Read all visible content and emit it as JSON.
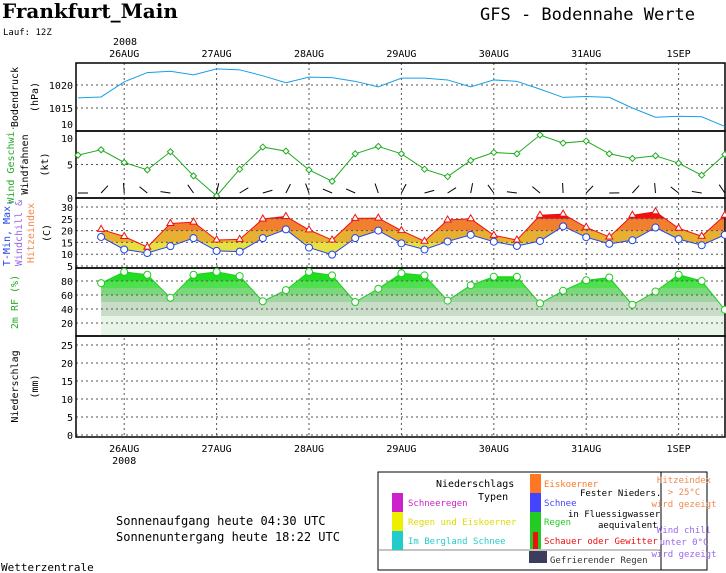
{
  "header": {
    "location": "Frankfurt_Main",
    "model_title": "GFS - Bodennahe Werte",
    "run": "Lauf: 12Z",
    "year": "2008"
  },
  "footer": {
    "sunrise": "Sonnenaufgang heute 04:30 UTC",
    "sunset": "Sonnenuntergang heute 18:22 UTC",
    "credit": "Wetterzentrale"
  },
  "chart_data": {
    "type": "line",
    "x_step_hours": 6,
    "x_start": "25AUG 18Z",
    "day_labels": [
      "26AUG",
      "27AUG",
      "28AUG",
      "29AUG",
      "30AUG",
      "31AUG",
      "1SEP"
    ],
    "bottom_year": "2008",
    "panels": [
      {
        "id": "pressure",
        "ylabel": "Bodendruck",
        "unit": "(hPa)",
        "ticks": [
          "1020",
          "1015",
          "10"
        ],
        "ylim": [
          1010,
          1025
        ],
        "series": [
          {
            "name": "Bodendruck",
            "color": "#1a9ee6",
            "values": [
              1017.2,
              1017.4,
              1020.7,
              1022.7,
              1023,
              1022.2,
              1023.5,
              1023.3,
              1022,
              1020.5,
              1021.7,
              1021.6,
              1020.8,
              1019.6,
              1021.5,
              1021.5,
              1021.1,
              1019.6,
              1021.1,
              1020.8,
              1019.1,
              1017.3,
              1017.5,
              1017.3,
              1015,
              1013,
              1013.2,
              1013.1,
              1011
            ]
          }
        ]
      },
      {
        "id": "wind",
        "ylabel": "Wind Geschwi.",
        "ylabel2": "Windfahnen",
        "unit": "(kt)",
        "ticks": [
          "10",
          "5",
          "0"
        ],
        "ylim": [
          0,
          10
        ],
        "series": [
          {
            "name": "Wind Geschwi.",
            "color": "#22aa22",
            "values": [
              6.4,
              7.2,
              5.3,
              4.2,
              6.9,
              3.3,
              0.3,
              4.3,
              7.6,
              7.0,
              4.2,
              2.5,
              6.6,
              7.7,
              6.6,
              4.3,
              3.2,
              5.6,
              6.8,
              6.6,
              9.4,
              8.2,
              8.5,
              6.6,
              5.9,
              6.3,
              5.2,
              3.4,
              6.5
            ]
          }
        ]
      },
      {
        "id": "temperature",
        "ylabel": "T-Min, Max,",
        "ylabel_colored": "Windchill &",
        "ylabel3": "Hitzeindex",
        "unit": "(C)",
        "ticks": [
          "30",
          "25",
          "20",
          "15",
          "10",
          "5"
        ],
        "ylim": [
          5,
          32
        ],
        "series": [
          {
            "name": "T-Min",
            "color": "#2244ee",
            "values": [
              null,
              17.3,
              12,
              10.5,
              13.4,
              16.8,
              11.4,
              11.1,
              16.8,
              20.5,
              12.8,
              9.8,
              16.8,
              20,
              14.6,
              12,
              15.4,
              18.2,
              15.3,
              13.5,
              15.6,
              21.8,
              17.2,
              14.4,
              15.9,
              21.3,
              16.4,
              13.8,
              18.2
            ]
          },
          {
            "name": "Max",
            "color": "#ee1111",
            "values": [
              null,
              20.5,
              17.5,
              13,
              23,
              23.6,
              16,
              16.3,
              24.9,
              26,
              20.3,
              16,
              25.2,
              25.3,
              20,
              15.5,
              24.5,
              25,
              18,
              16,
              26.5,
              27,
              21.4,
              17.3,
              26.5,
              28,
              21,
              17.6,
              26.5
            ]
          }
        ]
      },
      {
        "id": "humidity",
        "ylabel": "2m RF (%)",
        "ticks": [
          "80",
          "60",
          "40",
          "20"
        ],
        "ylim": [
          0,
          100
        ],
        "series": [
          {
            "name": "2m RF",
            "color": "#22cc22",
            "values": [
              null,
              77,
              93,
              89,
              56,
              89,
              93,
              87,
              51,
              67,
              93,
              88,
              50,
              69,
              91,
              88,
              52,
              74,
              86,
              86,
              48,
              66,
              81,
              85,
              46,
              65,
              89,
              80,
              39
            ]
          }
        ]
      },
      {
        "id": "precip",
        "ylabel": "Niederschlag",
        "unit": "(mm)",
        "ticks": [
          "25",
          "20",
          "15",
          "10",
          "5",
          "0"
        ],
        "ylim": [
          0,
          25.5
        ],
        "series": []
      }
    ]
  },
  "legend": {
    "title1": "Niederschlags",
    "title2": "Typen",
    "items_left": [
      {
        "label": "Schneeregen",
        "color": "#cc22cc"
      },
      {
        "label": "Regen und Eiskoerner",
        "color": "#eeee00"
      },
      {
        "label": "Im Bergland Schnee",
        "color": "#22cccc"
      }
    ],
    "items_mid": [
      {
        "label": "Eiskoerner",
        "color": "#ff7722"
      },
      {
        "label": "Schnee",
        "color": "#4444ff"
      },
      {
        "label": "Regen",
        "color": "#22cc22"
      },
      {
        "label": "Schauer oder Gewitter",
        "color": "#ee1111"
      }
    ],
    "solid_note1": "Fester Nieders.",
    "solid_note2": "in Fluessigwasser",
    "solid_note3": "aequivalent",
    "freezing": {
      "label": "Gefrierender Regen",
      "color": "#3c3c5c"
    },
    "heat_note": [
      "Hitzeindex",
      "> 25°C",
      "wird gezeigt"
    ],
    "chill_note": [
      "Wind chill",
      "unter 0°C",
      "wird gezeigt"
    ]
  }
}
